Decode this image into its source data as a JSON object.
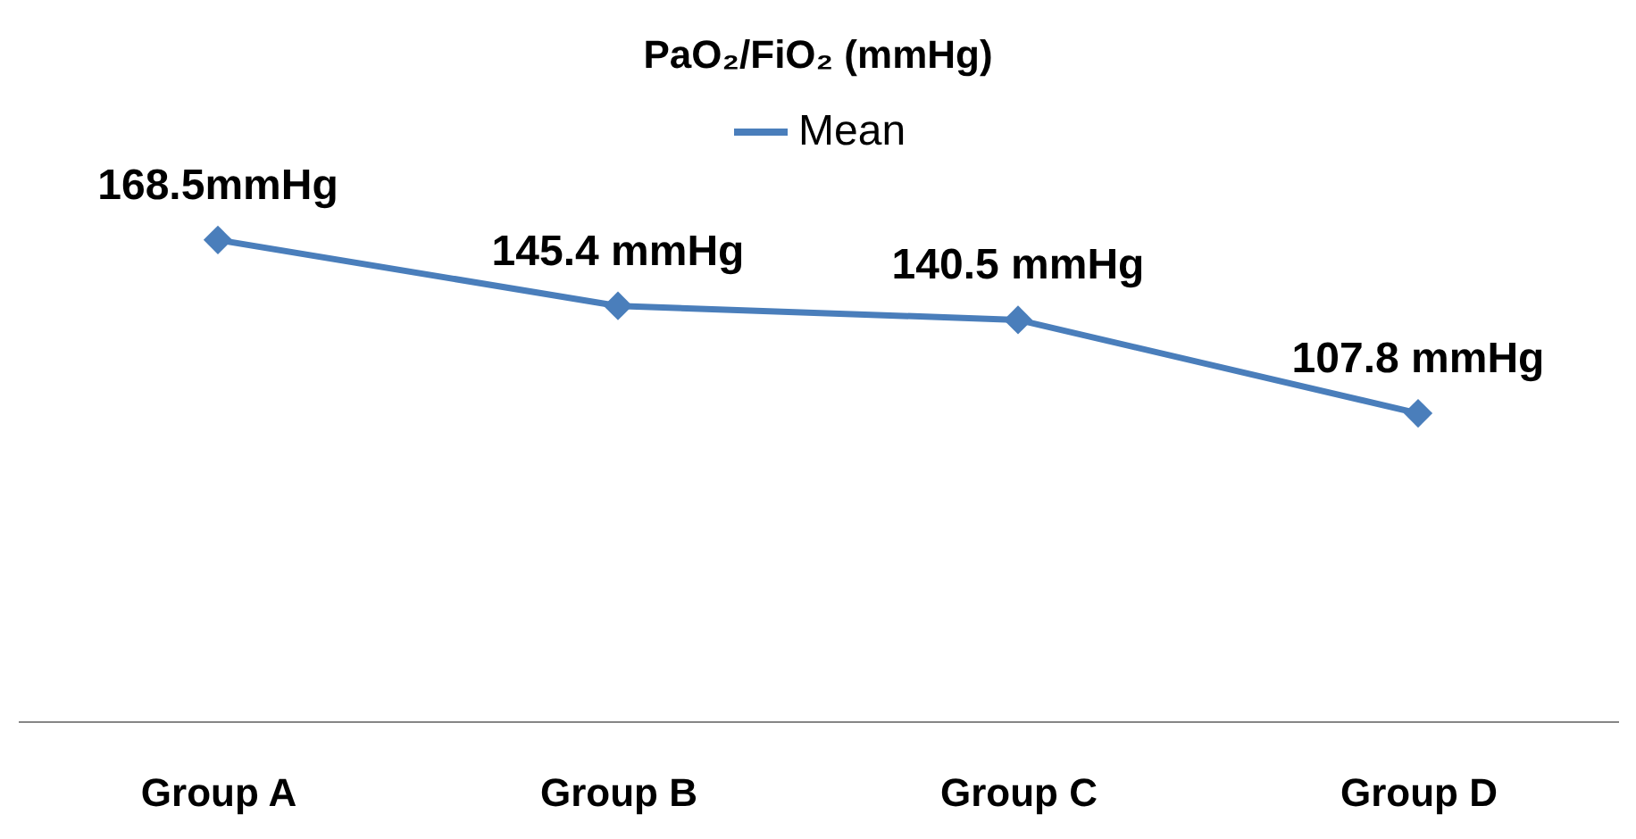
{
  "chart_data": {
    "type": "line",
    "title": "PaO₂/FiO₂ (mmHg)",
    "categories": [
      "Group A",
      "Group B",
      "Group C",
      "Group D"
    ],
    "series": [
      {
        "name": "Mean",
        "color": "#4a7ebb",
        "values": [
          168.5,
          145.4,
          140.5,
          107.8
        ],
        "value_labels": [
          "168.5mmHg",
          "145.4 mmHg",
          "140.5 mmHg",
          "107.8 mmHg"
        ]
      }
    ],
    "legend": "top",
    "marker": "diamond",
    "line_style": "solid",
    "grid": false
  }
}
